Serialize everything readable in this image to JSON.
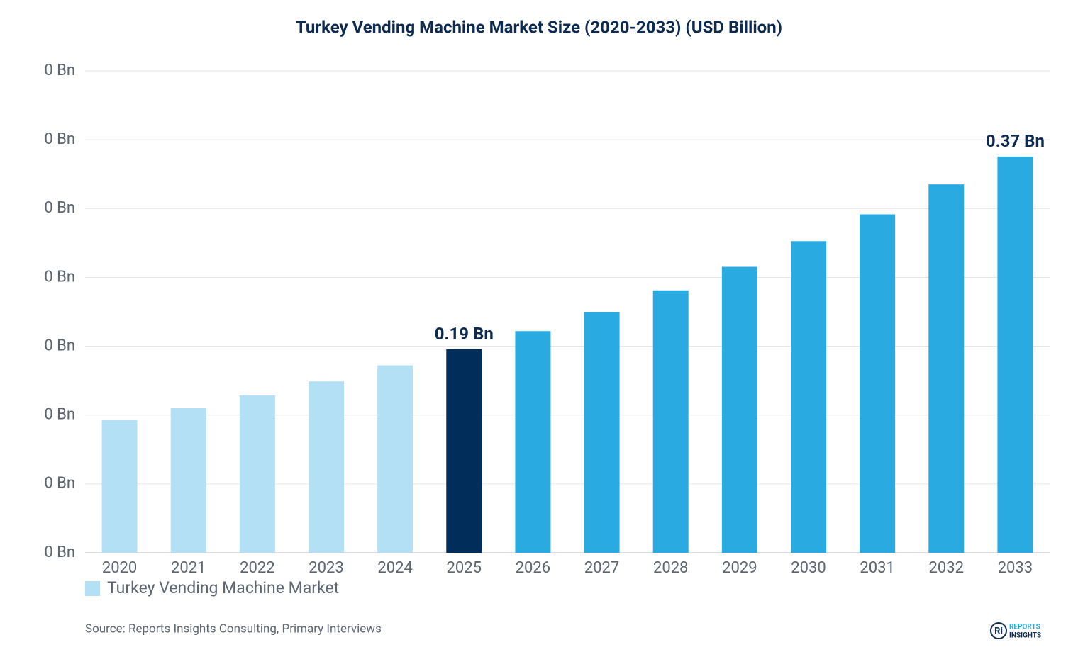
{
  "chart_data": {
    "type": "bar",
    "title": "Turkey Vending Machine Market Size (2020-2033) (USD Billion)",
    "categories": [
      "2020",
      "2021",
      "2022",
      "2023",
      "2024",
      "2025",
      "2026",
      "2027",
      "2028",
      "2029",
      "2030",
      "2031",
      "2032",
      "2033"
    ],
    "series": [
      {
        "name": "Turkey Vending Machine Market",
        "color": "#b3e0f5",
        "colors": [
          "#b3e0f5",
          "#b3e0f5",
          "#b3e0f5",
          "#b3e0f5",
          "#b3e0f5",
          "#002d5a",
          "#29abe2",
          "#29abe2",
          "#29abe2",
          "#29abe2",
          "#29abe2",
          "#29abe2",
          "#29abe2",
          "#29abe2"
        ],
        "values": [
          0.124,
          0.135,
          0.147,
          0.16,
          0.175,
          0.19,
          0.207,
          0.225,
          0.245,
          0.267,
          0.291,
          0.316,
          0.344,
          0.37
        ],
        "value_labels": [
          null,
          null,
          null,
          null,
          null,
          "0.19 Bn",
          null,
          null,
          null,
          null,
          null,
          null,
          null,
          "0.37 Bn"
        ]
      }
    ],
    "ylim": [
      0,
      0.45
    ],
    "yticks": [
      {
        "value": 0,
        "label": "0 Bn"
      },
      {
        "value": 0.0643,
        "label": "0 Bn"
      },
      {
        "value": 0.1286,
        "label": "0 Bn"
      },
      {
        "value": 0.1929,
        "label": "0 Bn"
      },
      {
        "value": 0.2571,
        "label": "0 Bn"
      },
      {
        "value": 0.3214,
        "label": "0 Bn"
      },
      {
        "value": 0.3857,
        "label": "0 Bn"
      },
      {
        "value": 0.45,
        "label": "0 Bn"
      }
    ],
    "grid": true,
    "legend": "bottom-left",
    "source": "Source: Reports Insights Consulting, Primary Interviews",
    "logo_mark": "Ri",
    "logo": [
      "REPORTS",
      "INSIGHTS"
    ]
  }
}
